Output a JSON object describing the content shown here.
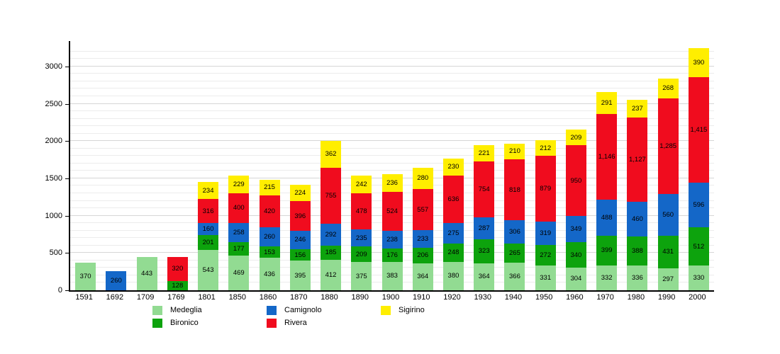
{
  "chart_data": {
    "type": "bar",
    "variant": "stacked",
    "title": "",
    "xlabel": "",
    "ylabel": "",
    "categories": [
      "1591",
      "1692",
      "1709",
      "1769",
      "1801",
      "1850",
      "1860",
      "1870",
      "1880",
      "1890",
      "1900",
      "1910",
      "1920",
      "1930",
      "1940",
      "1950",
      "1960",
      "1970",
      "1980",
      "1990",
      "2000"
    ],
    "series": [
      {
        "name": "Medeglia",
        "color": "#92db92",
        "values": [
          370,
          0,
          443,
          0,
          543,
          469,
          436,
          395,
          412,
          375,
          383,
          364,
          380,
          364,
          366,
          331,
          304,
          332,
          336,
          297,
          330
        ]
      },
      {
        "name": "Bironico",
        "color": "#0da30d",
        "values": [
          0,
          0,
          0,
          128,
          201,
          177,
          153,
          156,
          185,
          209,
          176,
          206,
          248,
          323,
          265,
          272,
          340,
          399,
          388,
          431,
          512
        ]
      },
      {
        "name": "Camignolo",
        "color": "#1467c8",
        "values": [
          0,
          260,
          0,
          0,
          160,
          258,
          260,
          246,
          292,
          235,
          238,
          233,
          275,
          287,
          306,
          319,
          349,
          488,
          460,
          560,
          596
        ]
      },
      {
        "name": "Rivera",
        "color": "#f00c1e",
        "values": [
          0,
          0,
          0,
          320,
          316,
          400,
          420,
          396,
          755,
          478,
          524,
          557,
          636,
          754,
          818,
          879,
          950,
          1146,
          1127,
          1285,
          1415
        ]
      },
      {
        "name": "Sigirino",
        "color": "#ffee00",
        "values": [
          0,
          0,
          0,
          0,
          234,
          229,
          215,
          224,
          362,
          242,
          236,
          280,
          230,
          221,
          210,
          212,
          209,
          291,
          237,
          268,
          390
        ]
      }
    ],
    "ylim": [
      0,
      3340
    ],
    "yticks": [
      0,
      500,
      1000,
      1500,
      2000,
      2500,
      3000
    ],
    "grid_minor_step": 100,
    "grid_major_step": 500,
    "grid": true,
    "legend_position": "bottom",
    "legend_columns": [
      [
        "Medeglia",
        "Bironico"
      ],
      [
        "Camignolo",
        "Rivera"
      ],
      [
        "Sigirino"
      ]
    ],
    "value_labels": "on-segments"
  }
}
